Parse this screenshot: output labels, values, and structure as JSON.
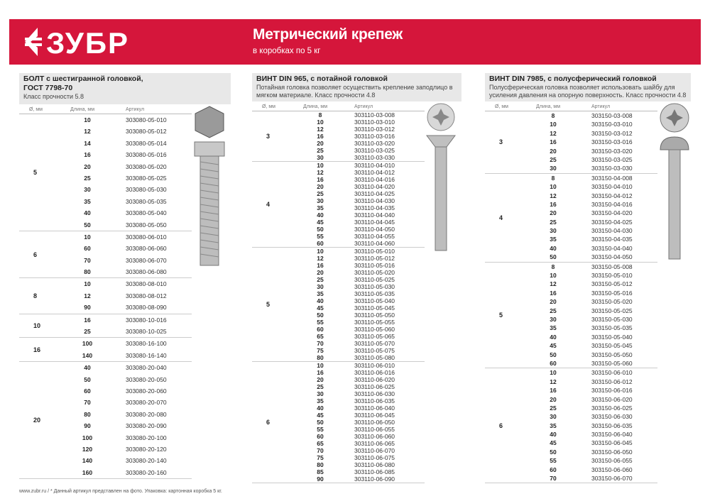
{
  "banner": {
    "brand": "ЗУБР",
    "title": "Метрический крепеж",
    "subtitle": "в коробках по 5 кг",
    "color": "#d5163b"
  },
  "columns": [
    {
      "title": "БОЛТ с шестигранной головкой,",
      "title2": "ГОСТ 7798-70",
      "desc": "Класс прочности 5.8",
      "headers": [
        "Ø, мм",
        "Длина, мм",
        "Артикул"
      ],
      "image": "hex-bolt",
      "groups": [
        {
          "d": "5",
          "items": [
            [
              "10",
              "303080-05-010"
            ],
            [
              "12",
              "303080-05-012"
            ],
            [
              "14",
              "303080-05-014"
            ],
            [
              "16",
              "303080-05-016"
            ],
            [
              "20",
              "303080-05-020"
            ],
            [
              "25",
              "303080-05-025"
            ],
            [
              "30",
              "303080-05-030"
            ],
            [
              "35",
              "303080-05-035"
            ],
            [
              "40",
              "303080-05-040"
            ],
            [
              "50",
              "303080-05-050"
            ]
          ]
        },
        {
          "d": "6",
          "items": [
            [
              "10",
              "303080-06-010"
            ],
            [
              "60",
              "303080-06-060"
            ],
            [
              "70",
              "303080-06-070"
            ],
            [
              "80",
              "303080-06-080"
            ]
          ]
        },
        {
          "d": "8",
          "items": [
            [
              "10",
              "303080-08-010"
            ],
            [
              "12",
              "303080-08-012"
            ],
            [
              "90",
              "303080-08-090"
            ]
          ]
        },
        {
          "d": "10",
          "items": [
            [
              "16",
              "303080-10-016"
            ],
            [
              "25",
              "303080-10-025"
            ]
          ]
        },
        {
          "d": "16",
          "items": [
            [
              "100",
              "303080-16-100"
            ],
            [
              "140",
              "303080-16-140"
            ]
          ]
        },
        {
          "d": "20",
          "items": [
            [
              "40",
              "303080-20-040"
            ],
            [
              "50",
              "303080-20-050"
            ],
            [
              "60",
              "303080-20-060"
            ],
            [
              "70",
              "303080-20-070"
            ],
            [
              "80",
              "303080-20-080"
            ],
            [
              "90",
              "303080-20-090"
            ],
            [
              "100",
              "303080-20-100"
            ],
            [
              "120",
              "303080-20-120"
            ],
            [
              "140",
              "303080-20-140"
            ],
            [
              "160",
              "303080-20-160"
            ]
          ]
        }
      ]
    },
    {
      "title": "ВИНТ DIN 965, с потайной головкой",
      "title2": "",
      "desc": "Потайная головка позволяет осуществить крепление заподлицо в мягком материале. Класс прочности 4.8",
      "headers": [
        "Ø, мм",
        "Длина, мм",
        "Артикул"
      ],
      "image": "countersunk-screw",
      "groups": [
        {
          "d": "3",
          "items": [
            [
              "8",
              "303110-03-008"
            ],
            [
              "10",
              "303110-03-010"
            ],
            [
              "12",
              "303110-03-012"
            ],
            [
              "16",
              "303110-03-016"
            ],
            [
              "20",
              "303110-03-020"
            ],
            [
              "25",
              "303110-03-025"
            ],
            [
              "30",
              "303110-03-030"
            ]
          ]
        },
        {
          "d": "4",
          "items": [
            [
              "10",
              "303110-04-010"
            ],
            [
              "12",
              "303110-04-012"
            ],
            [
              "16",
              "303110-04-016"
            ],
            [
              "20",
              "303110-04-020"
            ],
            [
              "25",
              "303110-04-025"
            ],
            [
              "30",
              "303110-04-030"
            ],
            [
              "35",
              "303110-04-035"
            ],
            [
              "40",
              "303110-04-040"
            ],
            [
              "45",
              "303110-04-045"
            ],
            [
              "50",
              "303110-04-050"
            ],
            [
              "55",
              "303110-04-055"
            ],
            [
              "60",
              "303110-04-060"
            ]
          ]
        },
        {
          "d": "5",
          "items": [
            [
              "10",
              "303110-05-010"
            ],
            [
              "12",
              "303110-05-012"
            ],
            [
              "16",
              "303110-05-016"
            ],
            [
              "20",
              "303110-05-020"
            ],
            [
              "25",
              "303110-05-025"
            ],
            [
              "30",
              "303110-05-030"
            ],
            [
              "35",
              "303110-05-035"
            ],
            [
              "40",
              "303110-05-040"
            ],
            [
              "45",
              "303110-05-045"
            ],
            [
              "50",
              "303110-05-050"
            ],
            [
              "55",
              "303110-05-055"
            ],
            [
              "60",
              "303110-05-060"
            ],
            [
              "65",
              "303110-05-065"
            ],
            [
              "70",
              "303110-05-070"
            ],
            [
              "75",
              "303110-05-075"
            ],
            [
              "80",
              "303110-05-080"
            ]
          ]
        },
        {
          "d": "6",
          "items": [
            [
              "10",
              "303110-06-010"
            ],
            [
              "16",
              "303110-06-016"
            ],
            [
              "20",
              "303110-06-020"
            ],
            [
              "25",
              "303110-06-025"
            ],
            [
              "30",
              "303110-06-030"
            ],
            [
              "35",
              "303110-06-035"
            ],
            [
              "40",
              "303110-06-040"
            ],
            [
              "45",
              "303110-06-045"
            ],
            [
              "50",
              "303110-06-050"
            ],
            [
              "55",
              "303110-06-055"
            ],
            [
              "60",
              "303110-06-060"
            ],
            [
              "65",
              "303110-06-065"
            ],
            [
              "70",
              "303110-06-070"
            ],
            [
              "75",
              "303110-06-075"
            ],
            [
              "80",
              "303110-06-080"
            ],
            [
              "85",
              "303110-06-085"
            ],
            [
              "90",
              "303110-06-090"
            ]
          ]
        }
      ]
    },
    {
      "title": "ВИНТ DIN 7985, с полусферический головкой",
      "title2": "",
      "desc": "Полусферическая головка позволяет использовать шайбу для усиления давления на опорную поверхность. Класс прочности 4.8",
      "headers": [
        "Ø, мм",
        "Длина, мм",
        "Артикул"
      ],
      "image": "pan-head-screw",
      "groups": [
        {
          "d": "3",
          "items": [
            [
              "8",
              "303150-03-008"
            ],
            [
              "10",
              "303150-03-010"
            ],
            [
              "12",
              "303150-03-012"
            ],
            [
              "16",
              "303150-03-016"
            ],
            [
              "20",
              "303150-03-020"
            ],
            [
              "25",
              "303150-03-025"
            ],
            [
              "30",
              "303150-03-030"
            ]
          ]
        },
        {
          "d": "4",
          "items": [
            [
              "8",
              "303150-04-008"
            ],
            [
              "10",
              "303150-04-010"
            ],
            [
              "12",
              "303150-04-012"
            ],
            [
              "16",
              "303150-04-016"
            ],
            [
              "20",
              "303150-04-020"
            ],
            [
              "25",
              "303150-04-025"
            ],
            [
              "30",
              "303150-04-030"
            ],
            [
              "35",
              "303150-04-035"
            ],
            [
              "40",
              "303150-04-040"
            ],
            [
              "50",
              "303150-04-050"
            ]
          ]
        },
        {
          "d": "5",
          "items": [
            [
              "8",
              "303150-05-008"
            ],
            [
              "10",
              "303150-05-010"
            ],
            [
              "12",
              "303150-05-012"
            ],
            [
              "16",
              "303150-05-016"
            ],
            [
              "20",
              "303150-05-020"
            ],
            [
              "25",
              "303150-05-025"
            ],
            [
              "30",
              "303150-05-030"
            ],
            [
              "35",
              "303150-05-035"
            ],
            [
              "40",
              "303150-05-040"
            ],
            [
              "45",
              "303150-05-045"
            ],
            [
              "50",
              "303150-05-050"
            ],
            [
              "60",
              "303150-05-060"
            ]
          ]
        },
        {
          "d": "6",
          "items": [
            [
              "10",
              "303150-06-010"
            ],
            [
              "12",
              "303150-06-012"
            ],
            [
              "16",
              "303150-06-016"
            ],
            [
              "20",
              "303150-06-020"
            ],
            [
              "25",
              "303150-06-025"
            ],
            [
              "30",
              "303150-06-030"
            ],
            [
              "35",
              "303150-06-035"
            ],
            [
              "40",
              "303150-06-040"
            ],
            [
              "45",
              "303150-06-045"
            ],
            [
              "50",
              "303150-06-050"
            ],
            [
              "55",
              "303150-06-055"
            ],
            [
              "60",
              "303150-06-060"
            ],
            [
              "70",
              "303150-06-070"
            ]
          ]
        }
      ]
    }
  ],
  "footer": "www.zubr.ru  /  * Данный артикул представлен на фото. Упаковка: картонная коробка 5 кг."
}
